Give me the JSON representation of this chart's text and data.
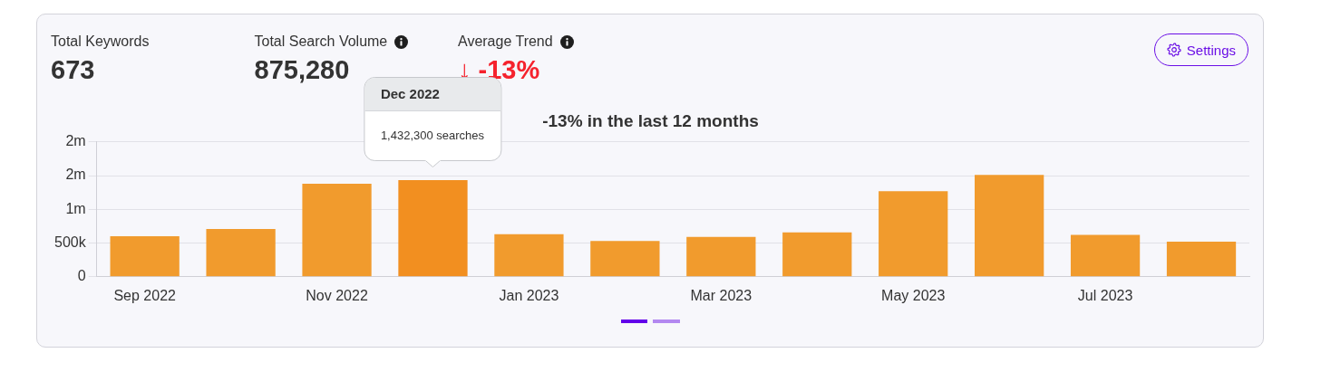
{
  "chart_data": [
    {
      "type": "other",
      "categories": [
        "Total Keywords",
        "Total Search Volume",
        "Average Trend"
      ],
      "value_labels": [
        "673",
        "875,280",
        "↓ -13%"
      ],
      "colors": [
        "#333333",
        "#333333",
        "#f5222d"
      ],
      "annotations": [
        "Settings"
      ]
    },
    {
      "type": "bar",
      "title": "-13% in the last 12 months",
      "categories": [
        "Sep 2022",
        null,
        "Nov 2022",
        null,
        "Jan 2023",
        null,
        "Mar 2023",
        null,
        "May 2023",
        null,
        "Jul 2023",
        null
      ],
      "values": [
        600000,
        710000,
        1380000,
        1432300,
        630000,
        530000,
        590000,
        660000,
        1270000,
        1510000,
        620000,
        520000
      ],
      "colors": [
        "#f19b2d",
        "#f19b2d",
        "#f19b2d",
        "#f28f20",
        "#f19b2d",
        "#f19b2d",
        "#f19b2d",
        "#f19b2d",
        "#f19b2d",
        "#f19b2d",
        "#f19b2d",
        "#f19b2d"
      ],
      "ylim": [
        0,
        2000000
      ],
      "yticks": [
        0,
        {
          "value": 500000,
          "label": "500k"
        },
        {
          "value": 1000000,
          "label": "1m"
        },
        {
          "value": 1500000,
          "label": "2m"
        },
        {
          "value": 2000000,
          "label": "2m"
        }
      ],
      "grid": "y",
      "annotations": [
        "Dec 2022",
        "1,432,300 searches"
      ]
    }
  ]
}
